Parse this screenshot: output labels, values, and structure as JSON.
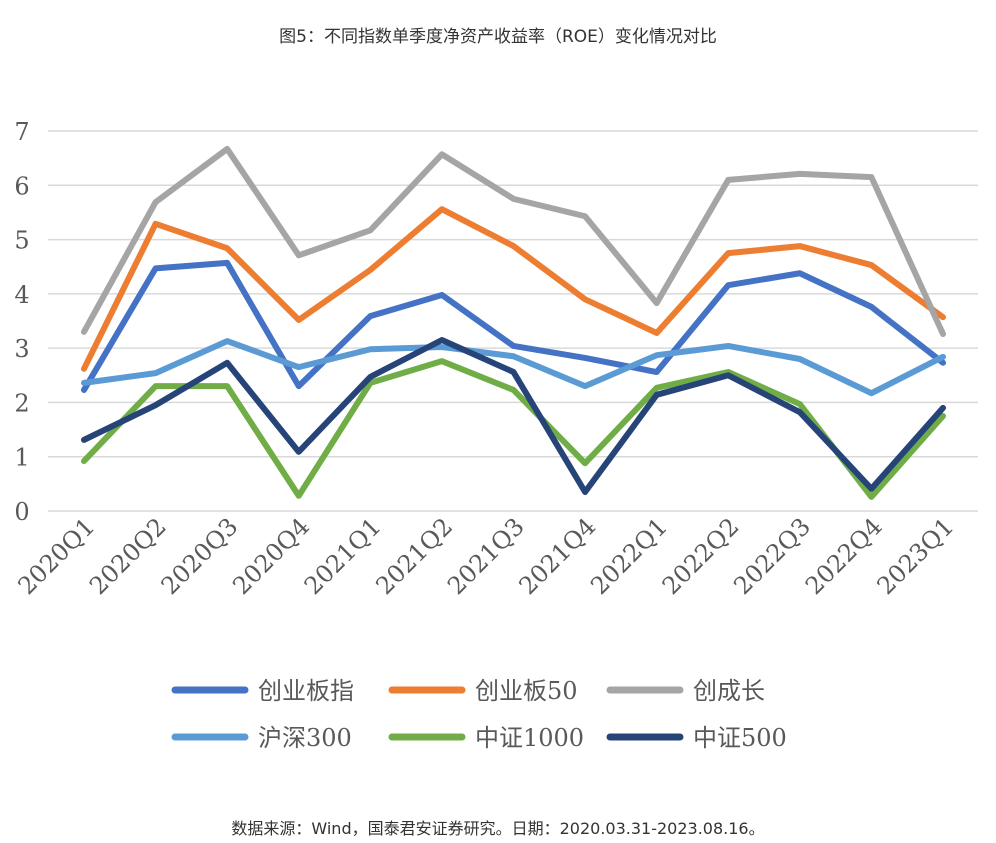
{
  "chart_data": {
    "type": "line",
    "title": "图5：不同指数单季度净资产收益率（ROE）变化情况对比",
    "source": "数据来源：Wind，国泰君安证券研究。日期：2020.03.31-2023.08.16。",
    "xlabel": "",
    "ylabel": "",
    "ylim": [
      0,
      7
    ],
    "yticks": [
      "0",
      "1",
      "2",
      "3",
      "4",
      "5",
      "6",
      "7"
    ],
    "grid": true,
    "legend_position": "bottom",
    "categories": [
      "2020Q1",
      "2020Q2",
      "2020Q3",
      "2020Q4",
      "2021Q1",
      "2021Q2",
      "2021Q3",
      "2021Q4",
      "2022Q1",
      "2022Q2",
      "2022Q3",
      "2022Q4",
      "2023Q1"
    ],
    "series": [
      {
        "name": "创业板指",
        "color": "#4472C4",
        "values": [
          2.23,
          4.47,
          4.57,
          2.3,
          3.59,
          3.98,
          3.04,
          2.82,
          2.56,
          4.16,
          4.38,
          3.76,
          2.73
        ]
      },
      {
        "name": "创业板50",
        "color": "#ED7D31",
        "values": [
          2.62,
          5.29,
          4.84,
          3.52,
          4.44,
          5.56,
          4.88,
          3.9,
          3.28,
          4.75,
          4.88,
          4.53,
          3.57
        ]
      },
      {
        "name": "创成长",
        "color": "#A5A5A5",
        "values": [
          3.3,
          5.69,
          6.67,
          4.71,
          5.17,
          6.57,
          5.75,
          5.43,
          3.83,
          6.1,
          6.21,
          6.15,
          3.26
        ]
      },
      {
        "name": "沪深300",
        "color": "#5B9BD5",
        "values": [
          2.36,
          2.54,
          3.13,
          2.65,
          2.98,
          3.02,
          2.85,
          2.3,
          2.87,
          3.04,
          2.8,
          2.17,
          2.84
        ]
      },
      {
        "name": "中证1000",
        "color": "#70AD47",
        "values": [
          0.92,
          2.3,
          2.3,
          0.28,
          2.36,
          2.76,
          2.23,
          0.88,
          2.27,
          2.56,
          1.97,
          0.26,
          1.75
        ]
      },
      {
        "name": "中证500",
        "color": "#264478",
        "values": [
          1.31,
          1.95,
          2.73,
          1.09,
          2.47,
          3.15,
          2.56,
          0.35,
          2.14,
          2.5,
          1.82,
          0.41,
          1.9
        ]
      }
    ]
  }
}
